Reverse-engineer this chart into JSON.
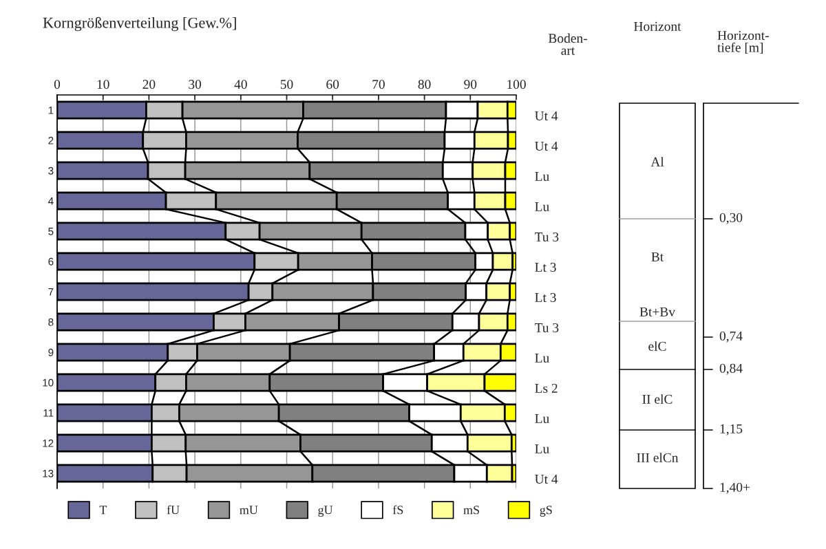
{
  "chart_data": [
    {
      "type": "bar",
      "orientation": "horizontal",
      "stacked": true,
      "title": "Korngrößenverteilung [Gew.%]",
      "categories": [
        "1",
        "2",
        "3",
        "4",
        "5",
        "6",
        "7",
        "8",
        "9",
        "10",
        "11",
        "12",
        "13"
      ],
      "series": [
        {
          "name": "T",
          "color": "#666699",
          "values": [
            19.4,
            18.7,
            19.8,
            23.7,
            36.7,
            43.0,
            41.7,
            34.1,
            24.1,
            21.4,
            20.6,
            20.6,
            20.8
          ]
        },
        {
          "name": "fU",
          "color": "#c0c0c0",
          "values": [
            7.9,
            9.4,
            8.1,
            10.9,
            7.4,
            9.5,
            5.2,
            6.9,
            6.4,
            6.7,
            6.0,
            7.4,
            7.4
          ]
        },
        {
          "name": "mU",
          "color": "#969696",
          "values": [
            26.3,
            24.3,
            27.1,
            26.3,
            22.2,
            16.1,
            21.9,
            20.4,
            20.2,
            18.2,
            21.7,
            25.0,
            27.4
          ]
        },
        {
          "name": "gU",
          "color": "#808080",
          "values": [
            31.1,
            32.0,
            29.0,
            24.2,
            22.6,
            22.5,
            20.2,
            24.7,
            31.4,
            24.7,
            28.4,
            28.6,
            30.9
          ]
        },
        {
          "name": "fS",
          "color": "#ffffff",
          "values": [
            6.9,
            6.5,
            6.5,
            5.8,
            4.9,
            3.8,
            4.5,
            5.8,
            6.4,
            9.6,
            11.2,
            7.8,
            7.1
          ]
        },
        {
          "name": "mS",
          "color": "#ffff99",
          "values": [
            6.5,
            7.3,
            7.1,
            6.7,
            4.8,
            4.3,
            5.1,
            6.2,
            8.1,
            12.5,
            9.6,
            9.6,
            5.5
          ]
        },
        {
          "name": "gS",
          "color": "#ffff00",
          "values": [
            1.9,
            1.8,
            2.4,
            2.4,
            1.4,
            0.8,
            1.4,
            1.9,
            3.4,
            6.9,
            2.5,
            1.0,
            0.9
          ]
        }
      ],
      "xlim": [
        0,
        100
      ],
      "xticks": [
        0,
        10,
        20,
        30,
        40,
        50,
        60,
        70,
        80,
        90,
        100
      ],
      "grid": "x",
      "legend": "bottom"
    },
    {
      "type": "other",
      "title": "Boden-\nart",
      "categories": [
        "Ut 4",
        "Ut 4",
        "Lu",
        "Lu",
        "Tu 3",
        "Lt 3",
        "Lt 3",
        "Tu 3",
        "Lu",
        "Ls 2",
        "Lu",
        "Lu",
        "Ut 4"
      ]
    },
    {
      "type": "other",
      "title": "Horizont",
      "annotations": [
        "Al",
        "Bt",
        "Bt+Bv",
        "elC",
        "II elC",
        "III elCn"
      ]
    },
    {
      "type": "other",
      "title": "Horizont-\ntiefe [m]",
      "annotations": [
        "0,30",
        "0,74",
        "0,84",
        "1,15",
        "1,40+"
      ]
    }
  ]
}
